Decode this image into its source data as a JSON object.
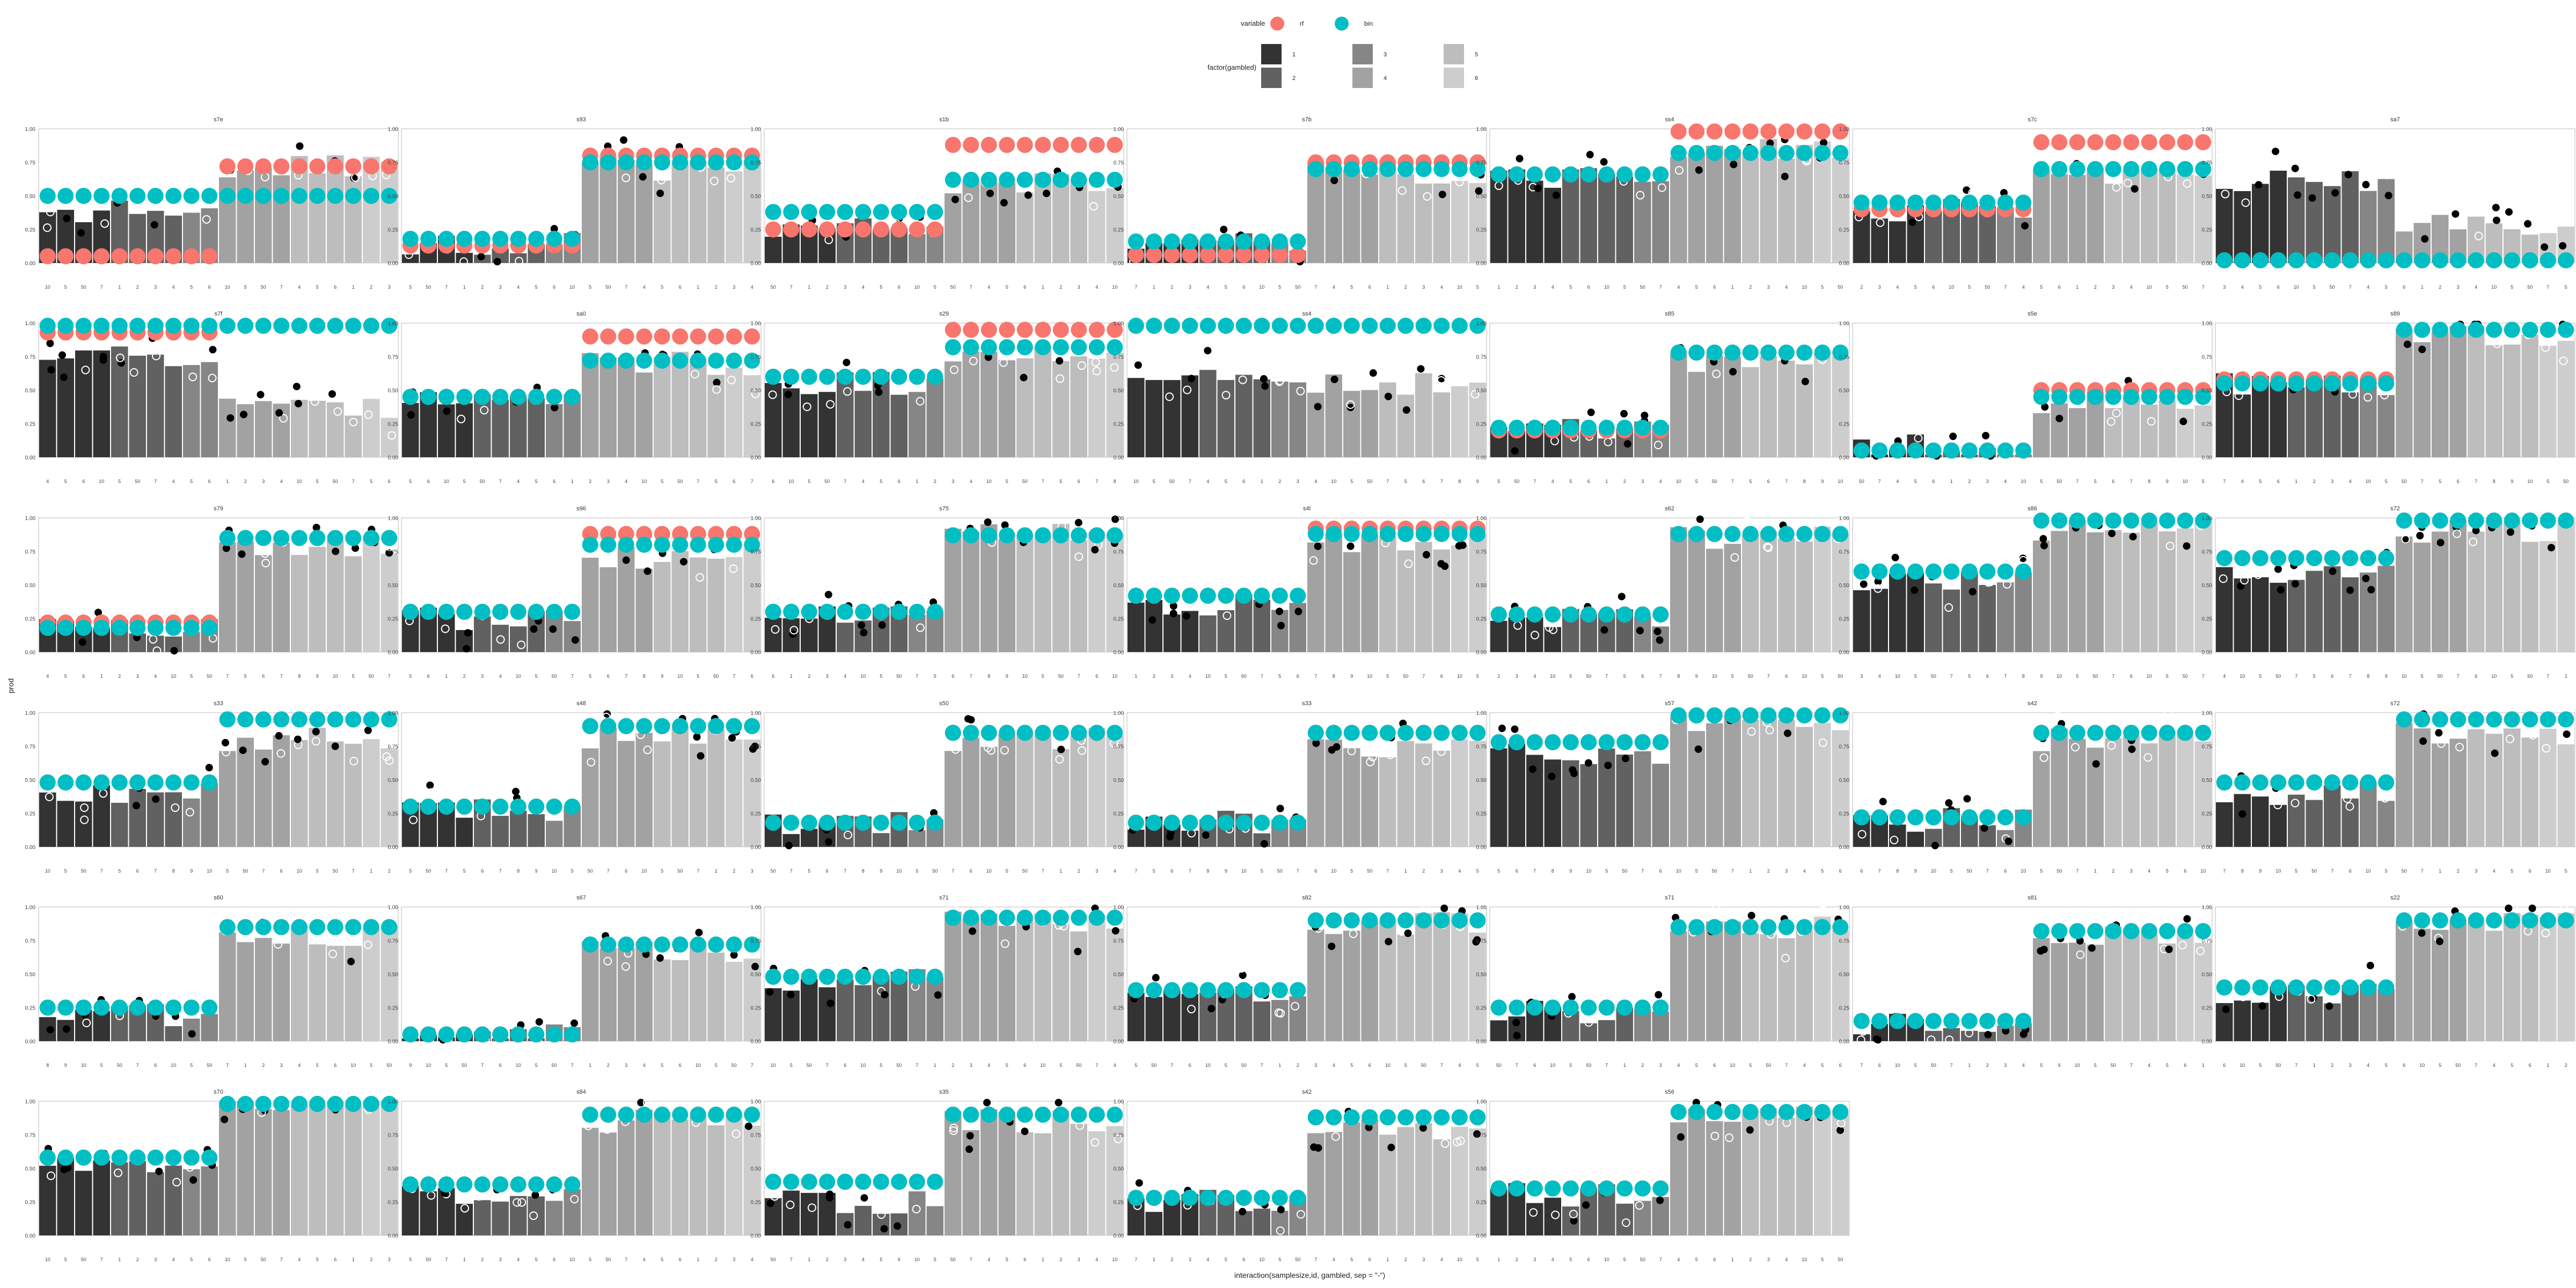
{
  "legend": {
    "variable_title": "variable",
    "variable_items": [
      {
        "label": "rf",
        "color": "#F8766D"
      },
      {
        "label": "bin",
        "color": "#00BFC4"
      }
    ],
    "gambled_title": "factor(gambled)",
    "gambled_items": [
      {
        "label": "1",
        "color": "#333333"
      },
      {
        "label": "2",
        "color": "#616161"
      },
      {
        "label": "3",
        "color": "#868686"
      },
      {
        "label": "4",
        "color": "#A2A2A2"
      },
      {
        "label": "5",
        "color": "#BDBDBD"
      },
      {
        "label": "6",
        "color": "#CDCDCD"
      }
    ]
  },
  "axes": {
    "x_title": "interaction(samplesize,id, gambled, sep = \"-\")",
    "y_title": "prod",
    "y_ticks": [
      "0.00",
      "0.25",
      "0.50",
      "0.75",
      "1.00"
    ],
    "x_tick_sequence": [
      "10",
      "5",
      "50",
      "7",
      "1",
      "2",
      "3",
      "4",
      "5",
      "6",
      "10",
      "5",
      "50",
      "7",
      "4",
      "5",
      "6",
      "1",
      "2",
      "3",
      "4",
      "10",
      "5",
      "50",
      "7",
      "5",
      "6",
      "7",
      "8",
      "9",
      "10",
      "5",
      "50",
      "7",
      "6"
    ]
  },
  "chart_data": {
    "type": "bar",
    "description_keys": [
      "facets[].title",
      "facets[].bars",
      "facets[].rf",
      "facets[].bin"
    ],
    "ylim": [
      0,
      1
    ],
    "colors": {
      "rf": "#F8766D",
      "bin": "#00BFC4"
    },
    "bars_per_facet": 20,
    "split_index": 10,
    "facets": [
      {
        "title": "s7e",
        "pre_bar": 0.38,
        "post_bar": 0.72,
        "rf_pre": 0.05,
        "rf_post": 0.72,
        "bin_pre": 0.5,
        "bin_post": 0.5
      },
      {
        "title": "s93",
        "pre_bar": 0.15,
        "post_bar": 0.7,
        "rf_pre": 0.13,
        "rf_post": 0.8,
        "bin_pre": 0.18,
        "bin_post": 0.75
      },
      {
        "title": "s1b",
        "pre_bar": 0.28,
        "post_bar": 0.6,
        "rf_pre": 0.25,
        "rf_post": 0.88,
        "bin_pre": 0.38,
        "bin_post": 0.62
      },
      {
        "title": "s7b",
        "pre_bar": 0.18,
        "post_bar": 0.68,
        "rf_pre": 0.06,
        "rf_post": 0.75,
        "bin_pre": 0.16,
        "bin_post": 0.7
      },
      {
        "title": "ss4",
        "pre_bar": 0.65,
        "post_bar": 0.85,
        "rf_pre": 0.66,
        "rf_post": 0.98,
        "bin_pre": 0.66,
        "bin_post": 0.82
      },
      {
        "title": "s7c",
        "pre_bar": 0.4,
        "post_bar": 0.65,
        "rf_pre": 0.4,
        "rf_post": 0.9,
        "bin_pre": 0.45,
        "bin_post": 0.7
      },
      {
        "title": "sa7",
        "pre_bar": 0.6,
        "post_bar": 0.3,
        "rf_pre": 0.02,
        "rf_post": 0.02,
        "bin_pre": 0.02,
        "bin_post": 0.02
      },
      {
        "title": "s7f",
        "pre_bar": 0.75,
        "post_bar": 0.35,
        "rf_pre": 0.93,
        "rf_post": 0.98,
        "bin_pre": 0.98,
        "bin_post": 0.98
      },
      {
        "title": "sa0",
        "pre_bar": 0.4,
        "post_bar": 0.7,
        "rf_pre": 0.45,
        "rf_post": 0.9,
        "bin_pre": 0.45,
        "bin_post": 0.72
      },
      {
        "title": "s29",
        "pre_bar": 0.55,
        "post_bar": 0.75,
        "rf_pre": 0.6,
        "rf_post": 0.95,
        "bin_pre": 0.6,
        "bin_post": 0.82
      },
      {
        "title": "ss4",
        "pre_bar": 0.6,
        "post_bar": 0.55,
        "rf_pre": 0.98,
        "rf_post": 0.98,
        "bin_pre": 0.98,
        "bin_post": 0.98
      },
      {
        "title": "s85",
        "pre_bar": 0.2,
        "post_bar": 0.7,
        "rf_pre": 0.2,
        "rf_post": 0.78,
        "bin_pre": 0.22,
        "bin_post": 0.78
      },
      {
        "title": "s5e",
        "pre_bar": 0.08,
        "post_bar": 0.4,
        "rf_pre": 0.05,
        "rf_post": 0.5,
        "bin_pre": 0.05,
        "bin_post": 0.45
      },
      {
        "title": "s89",
        "pre_bar": 0.55,
        "post_bar": 0.92,
        "rf_pre": 0.58,
        "rf_post": 0.95,
        "bin_pre": 0.55,
        "bin_post": 0.95
      },
      {
        "title": "s79",
        "pre_bar": 0.2,
        "post_bar": 0.78,
        "rf_pre": 0.22,
        "rf_post": 0.85,
        "bin_pre": 0.18,
        "bin_post": 0.85
      },
      {
        "title": "s96",
        "pre_bar": 0.25,
        "post_bar": 0.7,
        "rf_pre": 0.3,
        "rf_post": 0.88,
        "bin_pre": 0.3,
        "bin_post": 0.8
      },
      {
        "title": "s75",
        "pre_bar": 0.25,
        "post_bar": 0.88,
        "rf_pre": 0.3,
        "rf_post": 0.87,
        "bin_pre": 0.3,
        "bin_post": 0.87
      },
      {
        "title": "s4l",
        "pre_bar": 0.35,
        "post_bar": 0.8,
        "rf_pre": 0.42,
        "rf_post": 0.92,
        "bin_pre": 0.42,
        "bin_post": 0.88
      },
      {
        "title": "s62",
        "pre_bar": 0.25,
        "post_bar": 0.85,
        "rf_pre": 0.28,
        "rf_post": 0.88,
        "bin_pre": 0.28,
        "bin_post": 0.88
      },
      {
        "title": "s86",
        "pre_bar": 0.55,
        "post_bar": 0.92,
        "rf_pre": 0.6,
        "rf_post": 0.98,
        "bin_pre": 0.6,
        "bin_post": 0.98
      },
      {
        "title": "s72",
        "pre_bar": 0.6,
        "post_bar": 0.9,
        "rf_pre": 0.7,
        "rf_post": 0.98,
        "bin_pre": 0.7,
        "bin_post": 0.98
      },
      {
        "title": "s33",
        "pre_bar": 0.4,
        "post_bar": 0.8,
        "rf_pre": 0.48,
        "rf_post": 0.95,
        "bin_pre": 0.48,
        "bin_post": 0.95
      },
      {
        "title": "s48",
        "pre_bar": 0.28,
        "post_bar": 0.82,
        "rf_pre": 0.3,
        "rf_post": 0.9,
        "bin_pre": 0.3,
        "bin_post": 0.9
      },
      {
        "title": "s50",
        "pre_bar": 0.18,
        "post_bar": 0.8,
        "rf_pre": 0.18,
        "rf_post": 0.85,
        "bin_pre": 0.18,
        "bin_post": 0.85
      },
      {
        "title": "s33",
        "pre_bar": 0.18,
        "post_bar": 0.75,
        "rf_pre": 0.18,
        "rf_post": 0.85,
        "bin_pre": 0.18,
        "bin_post": 0.85
      },
      {
        "title": "s57",
        "pre_bar": 0.7,
        "post_bar": 0.95,
        "rf_pre": 0.78,
        "rf_post": 0.98,
        "bin_pre": 0.78,
        "bin_post": 0.98
      },
      {
        "title": "s42",
        "pre_bar": 0.2,
        "post_bar": 0.8,
        "rf_pre": 0.22,
        "rf_post": 0.85,
        "bin_pre": 0.22,
        "bin_post": 0.85
      },
      {
        "title": "s72",
        "pre_bar": 0.4,
        "post_bar": 0.85,
        "rf_pre": 0.48,
        "rf_post": 0.95,
        "bin_pre": 0.48,
        "bin_post": 0.95
      },
      {
        "title": "s60",
        "pre_bar": 0.2,
        "post_bar": 0.8,
        "rf_pre": 0.25,
        "rf_post": 0.85,
        "bin_pre": 0.25,
        "bin_post": 0.85
      },
      {
        "title": "s67",
        "pre_bar": 0.06,
        "post_bar": 0.68,
        "rf_pre": 0.05,
        "rf_post": 0.72,
        "bin_pre": 0.05,
        "bin_post": 0.72
      },
      {
        "title": "s71",
        "pre_bar": 0.45,
        "post_bar": 0.9,
        "rf_pre": 0.48,
        "rf_post": 0.92,
        "bin_pre": 0.48,
        "bin_post": 0.92
      },
      {
        "title": "s82",
        "pre_bar": 0.35,
        "post_bar": 0.88,
        "rf_pre": 0.38,
        "rf_post": 0.9,
        "bin_pre": 0.38,
        "bin_post": 0.9
      },
      {
        "title": "s71",
        "pre_bar": 0.22,
        "post_bar": 0.85,
        "rf_pre": 0.25,
        "rf_post": 0.85,
        "bin_pre": 0.25,
        "bin_post": 0.85
      },
      {
        "title": "s81",
        "pre_bar": 0.12,
        "post_bar": 0.8,
        "rf_pre": 0.15,
        "rf_post": 0.82,
        "bin_pre": 0.15,
        "bin_post": 0.82
      },
      {
        "title": "s22",
        "pre_bar": 0.35,
        "post_bar": 0.88,
        "rf_pre": 0.4,
        "rf_post": 0.9,
        "bin_pre": 0.4,
        "bin_post": 0.9
      },
      {
        "title": "s70",
        "pre_bar": 0.55,
        "post_bar": 0.95,
        "rf_pre": 0.58,
        "rf_post": 0.98,
        "bin_pre": 0.58,
        "bin_post": 0.98
      },
      {
        "title": "s84",
        "pre_bar": 0.3,
        "post_bar": 0.85,
        "rf_pre": 0.38,
        "rf_post": 0.9,
        "bin_pre": 0.38,
        "bin_post": 0.9
      },
      {
        "title": "s35",
        "pre_bar": 0.25,
        "post_bar": 0.85,
        "rf_pre": 0.4,
        "rf_post": 0.9,
        "bin_pre": 0.4,
        "bin_post": 0.9
      },
      {
        "title": "s42",
        "pre_bar": 0.25,
        "post_bar": 0.8,
        "rf_pre": 0.28,
        "rf_post": 0.88,
        "bin_pre": 0.28,
        "bin_post": 0.88
      },
      {
        "title": "s56",
        "pre_bar": 0.3,
        "post_bar": 0.9,
        "rf_pre": 0.35,
        "rf_post": 0.92,
        "bin_pre": 0.35,
        "bin_post": 0.92
      }
    ]
  }
}
